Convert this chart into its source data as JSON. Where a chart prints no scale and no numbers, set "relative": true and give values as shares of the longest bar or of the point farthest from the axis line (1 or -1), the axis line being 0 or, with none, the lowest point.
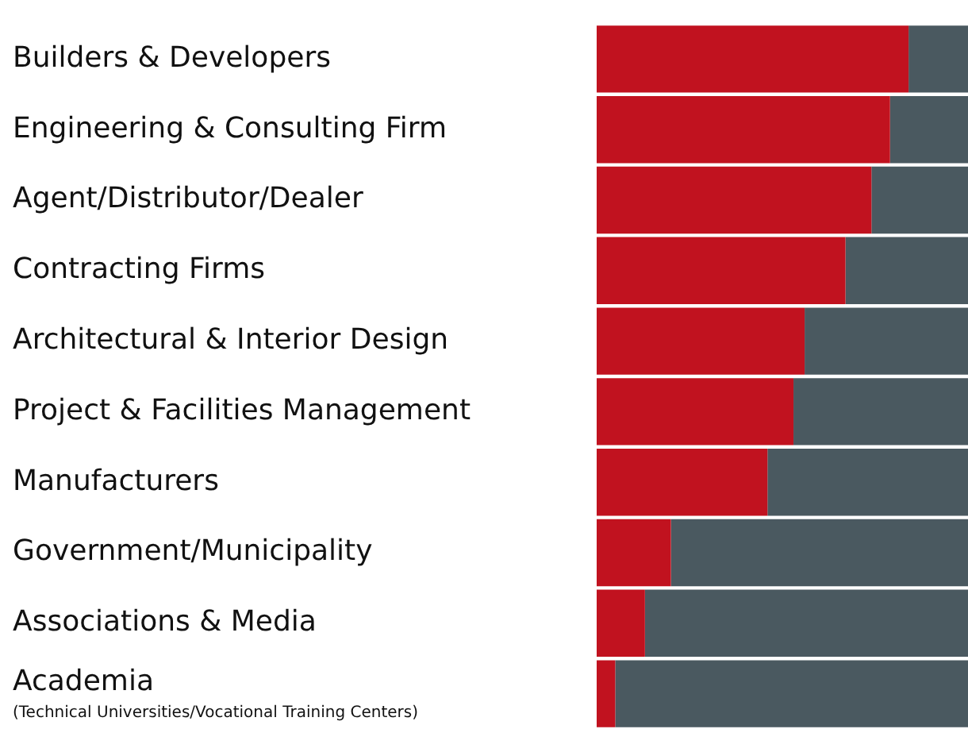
{
  "chart_data": {
    "type": "bar",
    "orientation": "horizontal",
    "stacked": true,
    "relative": true,
    "legend": false,
    "categories": [
      "Builders & Developers",
      "Engineering & Consulting Firm",
      "Agent/Distributor/Dealer",
      "Contracting Firms",
      "Architectural & Interior Design",
      "Project & Facilities Management",
      "Manufacturers",
      "Government/Municipality",
      "Associations & Media",
      "Academia\n(Technical Universities/Vocational Training Centers)"
    ],
    "series": [
      {
        "color": "#c1121f",
        "values": [
          0.84,
          0.79,
          0.74,
          0.67,
          0.56,
          0.53,
          0.46,
          0.2,
          0.13,
          0.05
        ]
      },
      {
        "color": "#4a5960",
        "values": [
          0.16,
          0.21,
          0.26,
          0.33,
          0.44,
          0.47,
          0.54,
          0.8,
          0.87,
          0.95
        ]
      }
    ]
  }
}
